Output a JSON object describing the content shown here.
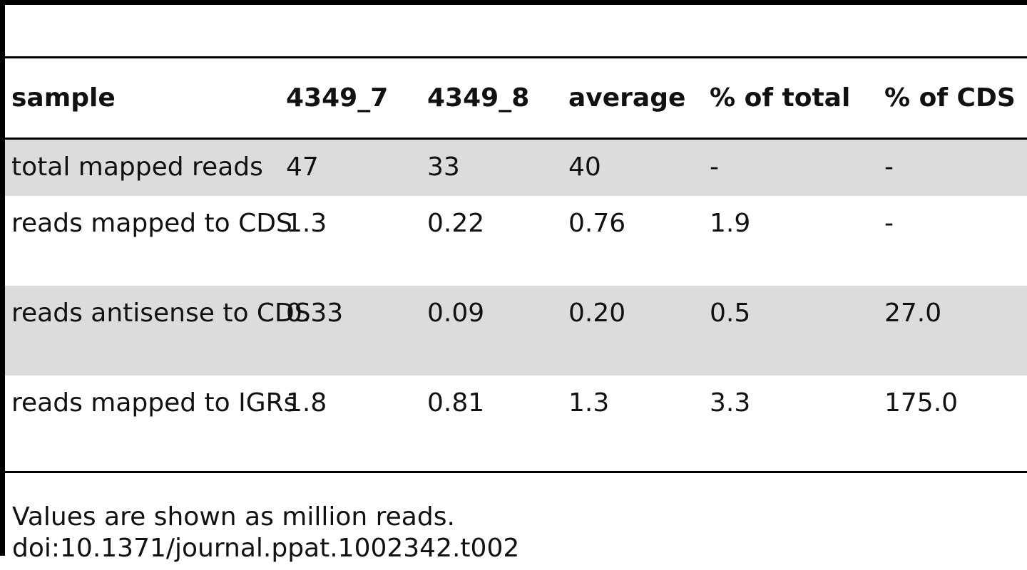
{
  "table": {
    "headers": [
      "sample",
      "4349_7",
      "4349_8",
      "average",
      "% of total",
      "% of CDS"
    ],
    "rows": [
      [
        "total mapped reads",
        "47",
        "33",
        "40",
        "-",
        "-"
      ],
      [
        "reads mapped to CDS",
        "1.3",
        "0.22",
        "0.76",
        "1.9",
        "-"
      ],
      [
        "reads antisense to CDS",
        "0.33",
        "0.09",
        "0.20",
        "0.5",
        "27.0"
      ],
      [
        "reads mapped to IGRs",
        "1.8",
        "0.81",
        "1.3",
        "3.3",
        "175.0"
      ]
    ],
    "row_shading_color": "#dcdcdc"
  },
  "footnote": {
    "note": "Values are shown as million reads.",
    "doi": "doi:10.1371/journal.ppat.1002342.t002"
  }
}
